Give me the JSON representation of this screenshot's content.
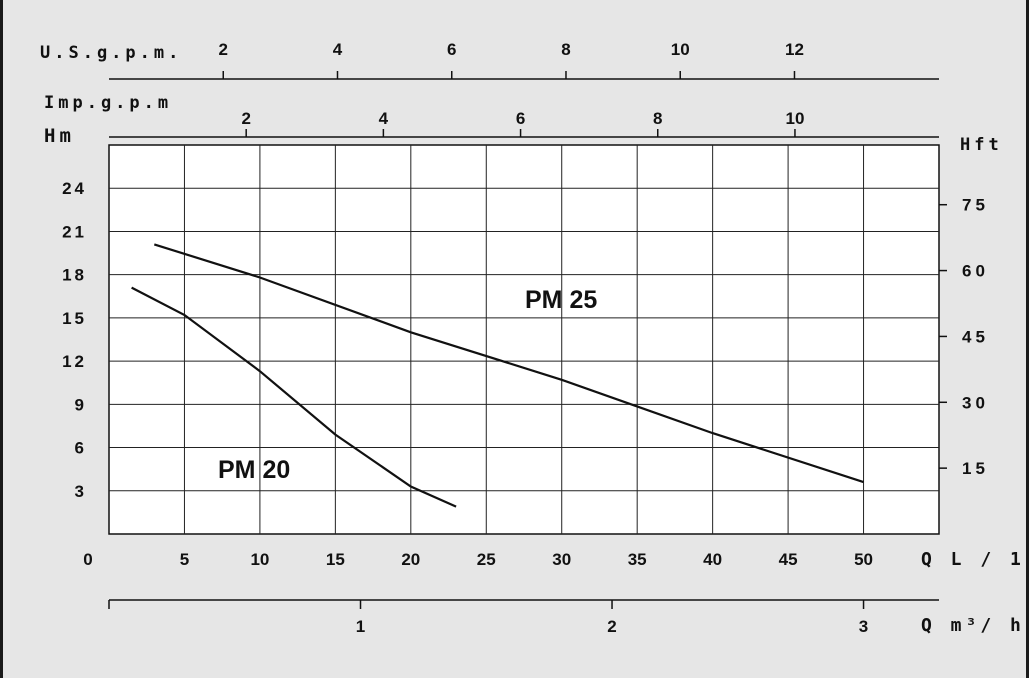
{
  "chart_data": {
    "type": "line",
    "background": "#e6e6e6",
    "plot_background": "#ffffff",
    "line_color": "#111111",
    "grid": true,
    "axes": {
      "bottom": {
        "label": "Q L / 1'",
        "origin_label": "0",
        "ticks": [
          "5",
          "10",
          "15",
          "20",
          "25",
          "30",
          "35",
          "40",
          "45",
          "50"
        ],
        "range": [
          0,
          55
        ]
      },
      "bottom2": {
        "label": "Q m³/ h",
        "ticks": [
          "1",
          "2",
          "3"
        ],
        "range": [
          0,
          3.3
        ]
      },
      "top": {
        "label": "U.S.g.p.m.",
        "ticks": [
          "2",
          "4",
          "6",
          "8",
          "10",
          "12"
        ],
        "range": [
          0,
          14.53
        ]
      },
      "top2": {
        "label": "Imp.g.p.m",
        "ticks": [
          "2",
          "4",
          "6",
          "8",
          "10"
        ],
        "range": [
          0,
          12.1
        ]
      },
      "left": {
        "label": "Hm",
        "ticks": [
          "3",
          "6",
          "9",
          "12",
          "15",
          "18",
          "21",
          "24"
        ],
        "range": [
          0,
          27
        ]
      },
      "right": {
        "label": "Hft",
        "ticks": [
          "15",
          "30",
          "45",
          "60",
          "75"
        ],
        "range": [
          0,
          88.6
        ]
      }
    },
    "series": [
      {
        "name": "PM 25",
        "x": [
          3,
          10,
          20,
          30,
          40,
          50
        ],
        "y": [
          20.1,
          17.8,
          14.0,
          10.7,
          7.0,
          3.6
        ]
      },
      {
        "name": "PM 20",
        "x": [
          1.5,
          5,
          10,
          15,
          20,
          23
        ],
        "y": [
          17.1,
          15.2,
          11.3,
          6.9,
          3.3,
          1.9
        ]
      }
    ]
  }
}
